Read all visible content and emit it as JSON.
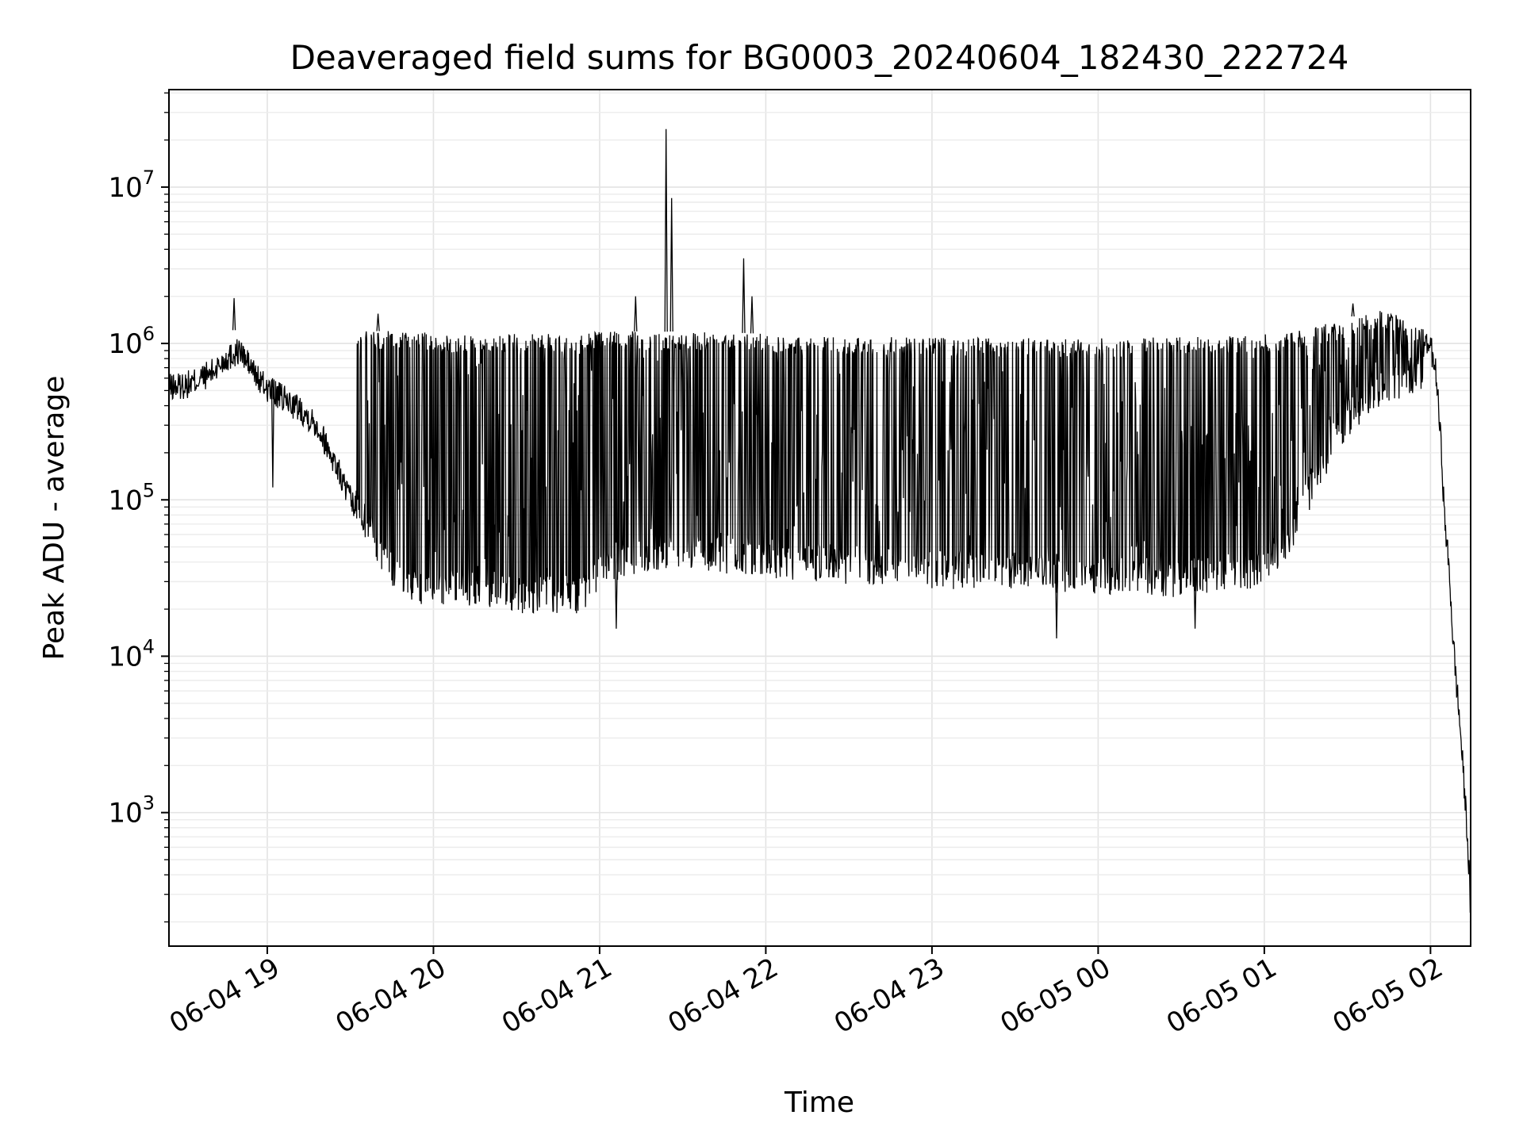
{
  "chart_data": {
    "type": "line",
    "title": "Deaveraged field sums for BG0003_20240604_182430_222724",
    "xlabel": "Time",
    "ylabel": "Peak ADU - average",
    "yscale": "log",
    "xlim": [
      "2024-06-04 18:24:30",
      "2024-06-05 02:14:30"
    ],
    "ylim": [
      140,
      42000000
    ],
    "grid": true,
    "x_ticks": [
      {
        "value": "2024-06-04 19:00",
        "label": "06-04 19"
      },
      {
        "value": "2024-06-04 20:00",
        "label": "06-04 20"
      },
      {
        "value": "2024-06-04 21:00",
        "label": "06-04 21"
      },
      {
        "value": "2024-06-04 22:00",
        "label": "06-04 22"
      },
      {
        "value": "2024-06-04 23:00",
        "label": "06-04 23"
      },
      {
        "value": "2024-06-05 00:00",
        "label": "06-05 00"
      },
      {
        "value": "2024-06-05 01:00",
        "label": "06-05 01"
      },
      {
        "value": "2024-06-05 02:00",
        "label": "06-05 02"
      }
    ],
    "y_ticks": [
      {
        "value": 1000,
        "base": "10",
        "exp": "3"
      },
      {
        "value": 10000,
        "base": "10",
        "exp": "4"
      },
      {
        "value": 100000,
        "base": "10",
        "exp": "5"
      },
      {
        "value": 1000000,
        "base": "10",
        "exp": "6"
      },
      {
        "value": 10000000,
        "base": "10",
        "exp": "7"
      }
    ],
    "series": [
      {
        "color": "#000000",
        "x": [
          "2024-06-04 18:24:30",
          "2024-06-04 18:32",
          "2024-06-04 18:40",
          "2024-06-04 18:45",
          "2024-06-04 18:50",
          "2024-06-04 18:58",
          "2024-06-04 19:05",
          "2024-06-04 19:12",
          "2024-06-04 19:18",
          "2024-06-04 19:24",
          "2024-06-04 19:30",
          "2024-06-04 19:37",
          "2024-06-04 19:45",
          "2024-06-04 19:55",
          "2024-06-04 20:05",
          "2024-06-04 20:15",
          "2024-06-04 20:25",
          "2024-06-04 20:35",
          "2024-06-04 20:45",
          "2024-06-04 20:55",
          "2024-06-04 21:00",
          "2024-06-04 21:10",
          "2024-06-04 21:20",
          "2024-06-04 21:30",
          "2024-06-04 21:45",
          "2024-06-04 22:00",
          "2024-06-04 22:30",
          "2024-06-04 23:00",
          "2024-06-04 23:30",
          "2024-06-05 00:00",
          "2024-06-05 00:30",
          "2024-06-05 01:00",
          "2024-06-05 01:10",
          "2024-06-05 01:20",
          "2024-06-05 01:30",
          "2024-06-05 01:40",
          "2024-06-05 01:50",
          "2024-06-05 01:57",
          "2024-06-05 02:00",
          "2024-06-05 02:02",
          "2024-06-05 02:04",
          "2024-06-05 02:05",
          "2024-06-05 02:06",
          "2024-06-05 02:07",
          "2024-06-05 02:08",
          "2024-06-05 02:09",
          "2024-06-05 02:10",
          "2024-06-05 02:11",
          "2024-06-05 02:12",
          "2024-06-05 02:13",
          "2024-06-05 02:14",
          "2024-06-05 02:14:30"
        ],
        "baseline": [
          520000,
          550000,
          650000,
          800000,
          900000,
          550000,
          450000,
          380000,
          300000,
          180000,
          100000,
          60000,
          33000,
          27000,
          25000,
          26000,
          23000,
          24000,
          23000,
          24000,
          35000,
          40000,
          45000,
          45000,
          42000,
          40000,
          36000,
          34000,
          33000,
          31000,
          30000,
          35000,
          60000,
          150000,
          320000,
          450000,
          550000,
          650000,
          950000,
          650000,
          200000,
          80000,
          50000,
          30000,
          14000,
          8000,
          5000,
          3000,
          1600,
          900,
          400,
          200
        ],
        "envelope": [
          620000,
          700000,
          850000,
          1100000,
          1300000,
          1000000,
          800000,
          1100000,
          1200000,
          1250000,
          1200000,
          1200000,
          1200000,
          1200000,
          1150000,
          1150000,
          1150000,
          1150000,
          1150000,
          1150000,
          1200000,
          1200000,
          1180000,
          1200000,
          1180000,
          1150000,
          1100000,
          1100000,
          1080000,
          1080000,
          1100000,
          1150000,
          1200000,
          1300000,
          1450000,
          1650000,
          1500000,
          1300000,
          1100000,
          1000000,
          650000,
          300000,
          200000,
          80000,
          30000,
          14000,
          8000,
          5000,
          2500,
          1500,
          600,
          250
        ],
        "spikes": [
          {
            "x": "2024-06-04 18:48",
            "y": 1950000
          },
          {
            "x": "2024-06-04 19:40",
            "y": 1550000
          },
          {
            "x": "2024-06-04 21:13",
            "y": 2000000
          },
          {
            "x": "2024-06-04 21:24",
            "y": 23500000
          },
          {
            "x": "2024-06-04 21:26",
            "y": 8500000
          },
          {
            "x": "2024-06-04 21:52",
            "y": 3500000
          },
          {
            "x": "2024-06-04 21:55",
            "y": 2000000
          },
          {
            "x": "2024-06-05 01:32",
            "y": 1800000
          }
        ],
        "dips": [
          {
            "x": "2024-06-04 19:02",
            "y": 120000
          },
          {
            "x": "2024-06-04 21:06",
            "y": 15000
          },
          {
            "x": "2024-06-04 23:45",
            "y": 13000
          },
          {
            "x": "2024-06-05 00:35",
            "y": 15000
          }
        ]
      }
    ]
  }
}
